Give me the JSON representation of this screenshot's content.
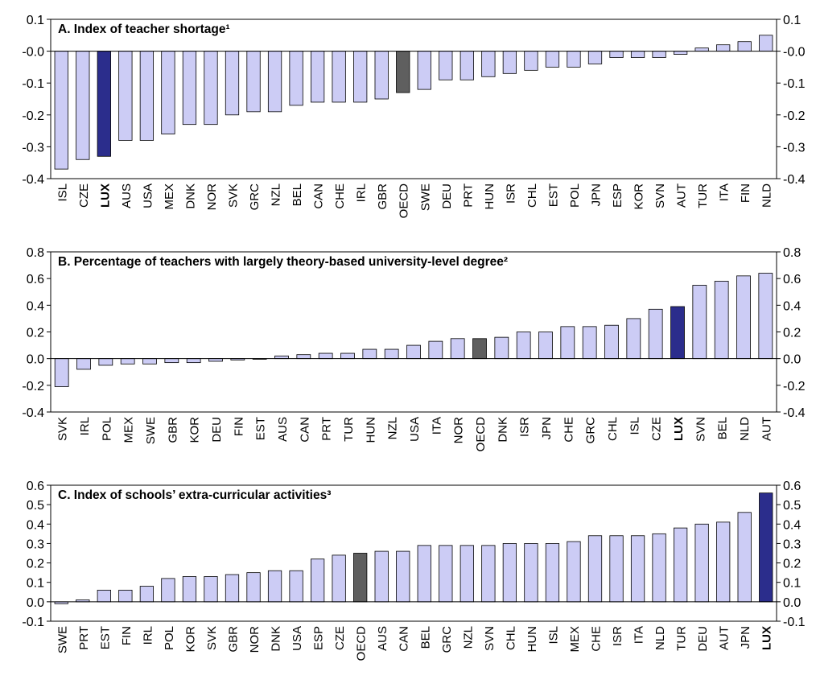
{
  "colors": {
    "bar_default": "#ccccf5",
    "bar_highlight": "#2b2d8c",
    "bar_oecd": "#5f5f5f",
    "bar_stroke": "#000000"
  },
  "chart_data": [
    {
      "type": "bar",
      "title": "A. Index of teacher shortage¹",
      "ylim": [
        -0.4,
        0.1
      ],
      "yticks": [
        "0.1",
        "-0.0",
        "-0.1",
        "-0.2",
        "-0.3",
        "-0.4"
      ],
      "highlight": "LUX",
      "reference": "OECD",
      "categories": [
        "ISL",
        "CZE",
        "LUX",
        "AUS",
        "USA",
        "MEX",
        "DNK",
        "NOR",
        "SVK",
        "GRC",
        "NZL",
        "BEL",
        "CAN",
        "CHE",
        "IRL",
        "GBR",
        "OECD",
        "SWE",
        "DEU",
        "PRT",
        "HUN",
        "ISR",
        "CHL",
        "EST",
        "POL",
        "JPN",
        "ESP",
        "KOR",
        "SVN",
        "AUT",
        "TUR",
        "ITA",
        "FIN",
        "NLD"
      ],
      "values": [
        -0.37,
        -0.34,
        -0.33,
        -0.28,
        -0.28,
        -0.26,
        -0.23,
        -0.23,
        -0.2,
        -0.19,
        -0.19,
        -0.17,
        -0.16,
        -0.16,
        -0.16,
        -0.15,
        -0.13,
        -0.12,
        -0.09,
        -0.09,
        -0.08,
        -0.07,
        -0.06,
        -0.05,
        -0.05,
        -0.04,
        -0.02,
        -0.02,
        -0.02,
        -0.01,
        0.01,
        0.02,
        0.03,
        0.05
      ]
    },
    {
      "type": "bar",
      "title": "B. Percentage of teachers with largely theory-based university-level degree²",
      "ylim": [
        -0.4,
        0.8
      ],
      "yticks": [
        "0.8",
        "0.6",
        "0.4",
        "0.2",
        "0.0",
        "-0.2",
        "-0.4"
      ],
      "highlight": "LUX",
      "reference": "OECD",
      "categories": [
        "SVK",
        "IRL",
        "POL",
        "MEX",
        "SWE",
        "GBR",
        "KOR",
        "DEU",
        "FIN",
        "EST",
        "AUS",
        "CAN",
        "PRT",
        "TUR",
        "HUN",
        "NZL",
        "USA",
        "ITA",
        "NOR",
        "OECD",
        "DNK",
        "ISR",
        "JPN",
        "CHE",
        "GRC",
        "CHL",
        "ISL",
        "CZE",
        "LUX",
        "SVN",
        "BEL",
        "NLD",
        "AUT"
      ],
      "values": [
        -0.21,
        -0.08,
        -0.05,
        -0.04,
        -0.04,
        -0.03,
        -0.03,
        -0.02,
        -0.01,
        0.0,
        0.02,
        0.03,
        0.04,
        0.04,
        0.07,
        0.07,
        0.1,
        0.13,
        0.15,
        0.15,
        0.16,
        0.2,
        0.2,
        0.24,
        0.24,
        0.25,
        0.3,
        0.37,
        0.39,
        0.55,
        0.58,
        0.62,
        0.64
      ]
    },
    {
      "type": "bar",
      "title": "C. Index of schools’ extra-curricular activities³",
      "ylim": [
        -0.1,
        0.6
      ],
      "yticks": [
        "0.6",
        "0.5",
        "0.4",
        "0.3",
        "0.2",
        "0.1",
        "0.0",
        "-0.1"
      ],
      "highlight": "LUX",
      "reference": "OECD",
      "categories": [
        "SWE",
        "PRT",
        "EST",
        "FIN",
        "IRL",
        "POL",
        "KOR",
        "SVK",
        "GBR",
        "NOR",
        "DNK",
        "USA",
        "ESP",
        "CZE",
        "OECD",
        "AUS",
        "CAN",
        "BEL",
        "GRC",
        "NZL",
        "SVN",
        "CHL",
        "HUN",
        "ISL",
        "MEX",
        "CHE",
        "ISR",
        "ITA",
        "NLD",
        "TUR",
        "DEU",
        "AUT",
        "JPN",
        "LUX"
      ],
      "values": [
        -0.01,
        0.01,
        0.06,
        0.06,
        0.08,
        0.12,
        0.13,
        0.13,
        0.14,
        0.15,
        0.16,
        0.16,
        0.22,
        0.24,
        0.25,
        0.26,
        0.26,
        0.29,
        0.29,
        0.29,
        0.29,
        0.3,
        0.3,
        0.3,
        0.31,
        0.34,
        0.34,
        0.34,
        0.35,
        0.38,
        0.4,
        0.41,
        0.46,
        0.56
      ]
    }
  ]
}
